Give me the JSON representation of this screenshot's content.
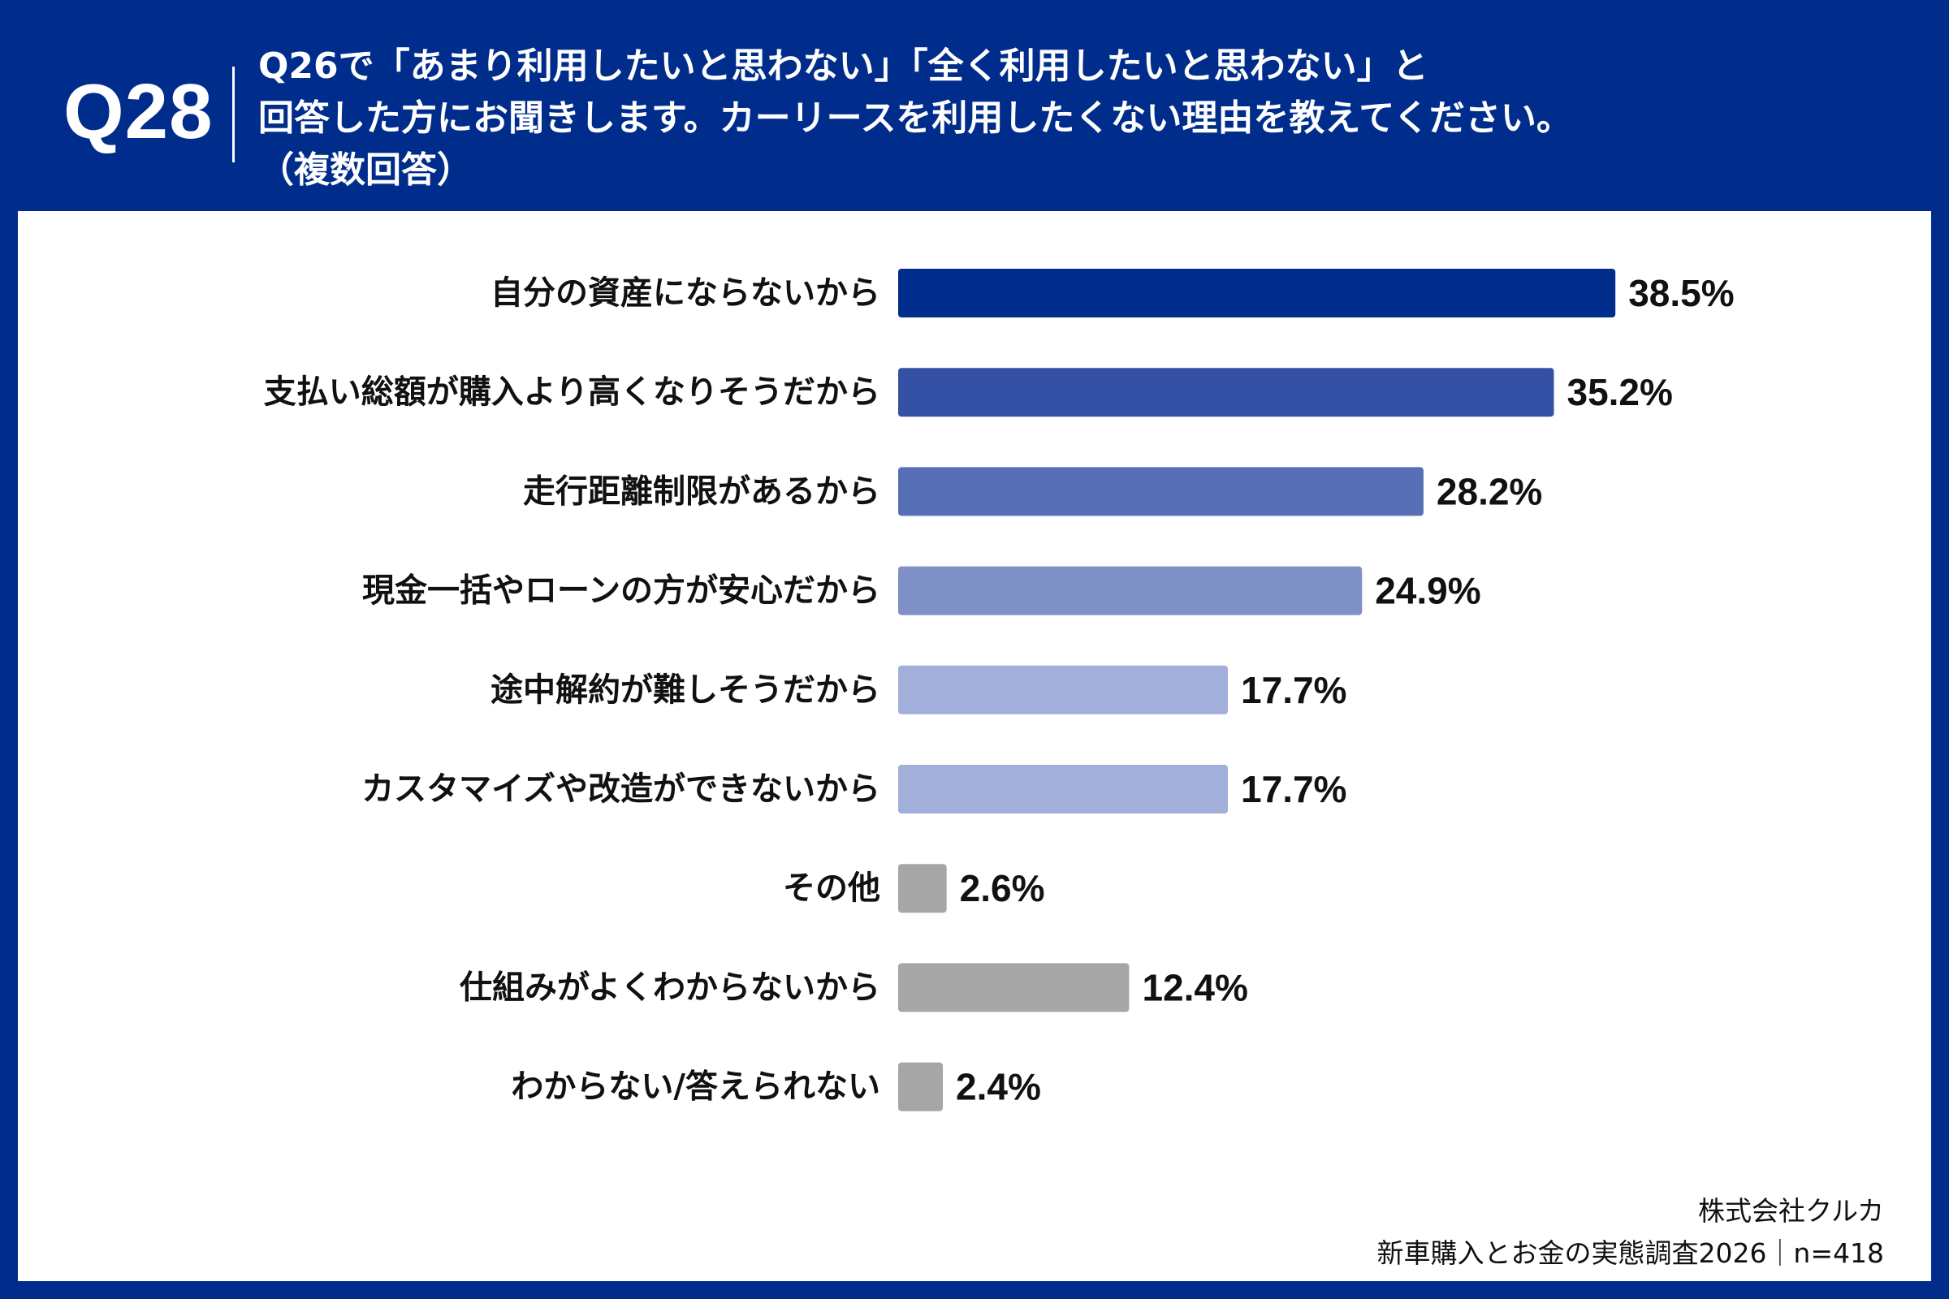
{
  "header": {
    "question_number": "Q28",
    "question_lines": [
      "Q26で「あまり利用したいと思わない」「全く利用したいと思わない」と",
      "回答した方にお聞きします。カーリースを利用したくない理由を教えてください。",
      "（複数回答）"
    ]
  },
  "footer": {
    "company": "株式会社クルカ",
    "survey": "新車購入とお金の実態調査2026｜n=418"
  },
  "chart_data": {
    "type": "bar",
    "orientation": "horizontal",
    "categories": [
      "自分の資産にならないから",
      "支払い総額が購入より高くなりそうだから",
      "走行距離制限があるから",
      "現金一括やローンの方が安心だから",
      "途中解約が難しそうだから",
      "カスタマイズや改造ができないから",
      "その他",
      "仕組みがよくわからないから",
      "わからない/答えられない"
    ],
    "values": [
      38.5,
      35.2,
      28.2,
      24.9,
      17.7,
      17.7,
      2.6,
      12.4,
      2.4
    ],
    "value_labels": [
      "38.5%",
      "35.2%",
      "28.2%",
      "24.9%",
      "17.7%",
      "17.7%",
      "2.6%",
      "12.4%",
      "2.4%"
    ],
    "colors": [
      "#002d8c",
      "#3551a6",
      "#566fb6",
      "#7f90c7",
      "#a3afdb",
      "#a3afdb",
      "#a6a6a6",
      "#a6a6a6",
      "#a6a6a6"
    ],
    "unit": "%",
    "grid": false,
    "legend": "none"
  }
}
